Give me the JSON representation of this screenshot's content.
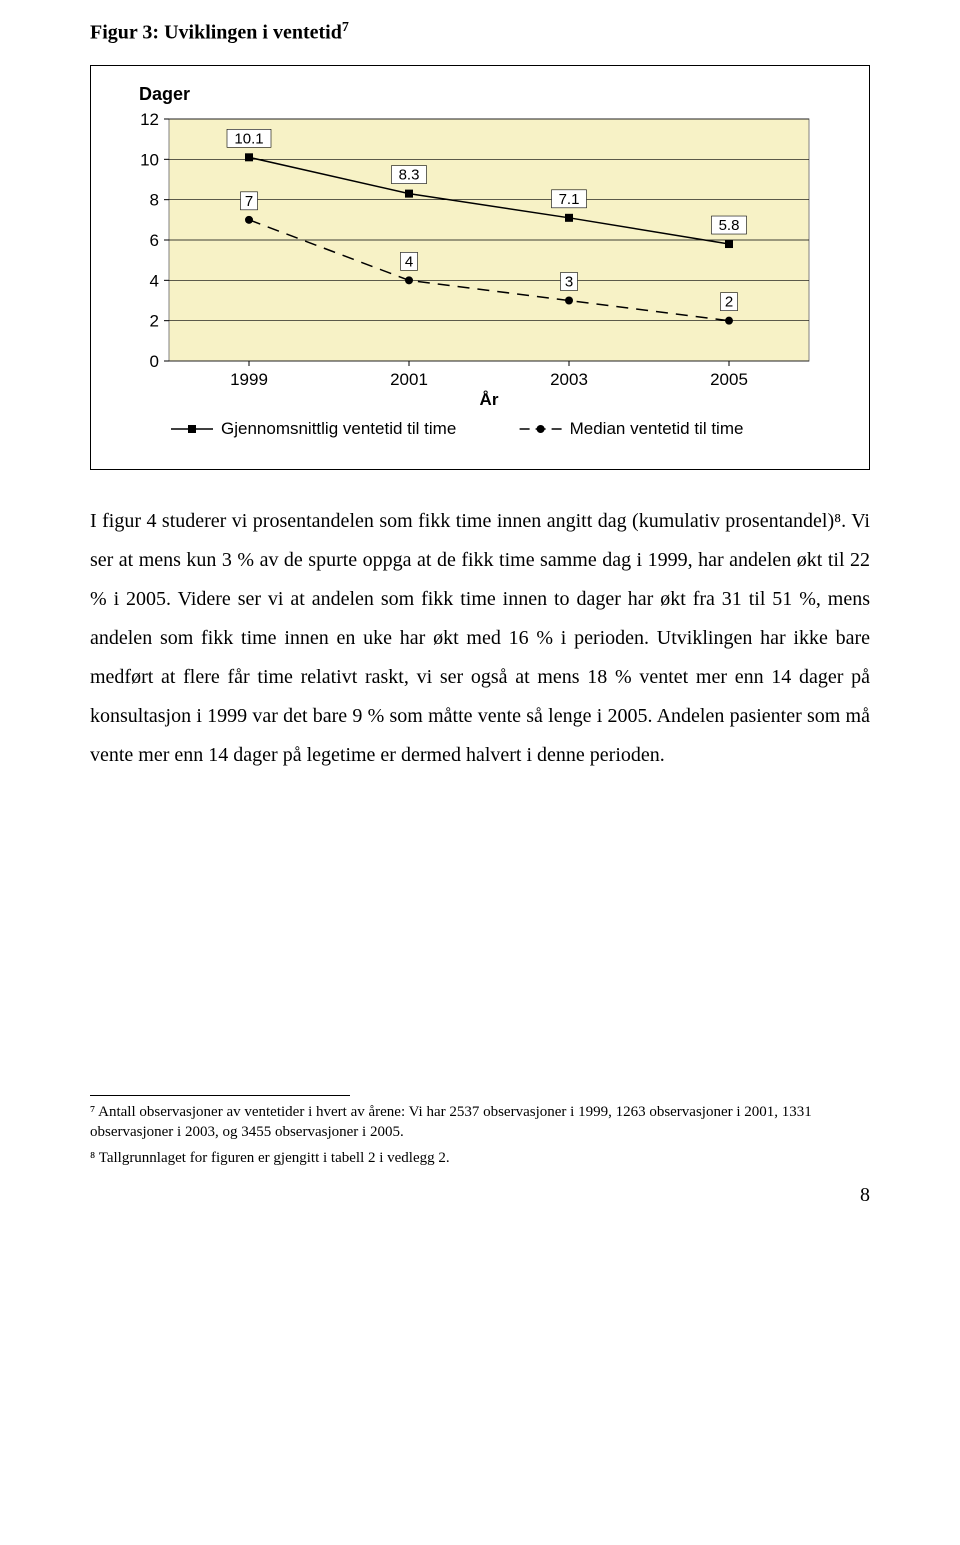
{
  "figure": {
    "number": 3,
    "title_prefix": "Figur 3: Uviklingen i ventetid",
    "footnote_marker": "7",
    "y_axis_title": "Dager",
    "x_axis_title": "År",
    "chart": {
      "type": "line",
      "background_color": "#f7f2c6",
      "plot_border_color": "#808080",
      "grid_color": "#000000",
      "x_categories": [
        "1999",
        "2001",
        "2003",
        "2005"
      ],
      "ylim": [
        0,
        12
      ],
      "ytick_step": 2,
      "yticks": [
        "0",
        "2",
        "4",
        "6",
        "8",
        "10",
        "12"
      ],
      "series": [
        {
          "name": "Gjennomsnittlig ventetid til time",
          "values": [
            10.1,
            8.3,
            7.1,
            5.8
          ],
          "labels": [
            "10.1",
            "8.3",
            "7.1",
            "5.8"
          ],
          "color": "#000000",
          "marker": "square",
          "marker_size": 8,
          "line_style": "solid",
          "line_width": 1.5
        },
        {
          "name": "Median ventetid til time",
          "values": [
            7,
            4,
            3,
            2
          ],
          "labels": [
            "7",
            "4",
            "3",
            "2"
          ],
          "color": "#000000",
          "marker": "circle",
          "marker_size": 8,
          "line_style": "dashed",
          "line_width": 1.5
        }
      ],
      "data_label_bg": "#ffffff",
      "data_label_border": "#000000"
    }
  },
  "body_text": "I figur 4 studerer vi prosentandelen som fikk time innen angitt dag (kumulativ prosentandel)⁸. Vi ser at mens kun 3 % av de spurte oppga at de fikk time samme dag i 1999, har andelen økt til 22 % i 2005. Videre ser vi at andelen som fikk time innen to dager har økt fra 31 til 51 %, mens andelen som fikk time innen en uke har økt med 16 % i perioden. Utviklingen har ikke bare medført at flere får time relativt raskt, vi ser også at mens 18 % ventet mer enn 14 dager på konsultasjon i 1999 var det bare 9 % som måtte vente så lenge i 2005. Andelen pasienter som må vente mer enn 14 dager på legetime er dermed halvert i denne perioden.",
  "footnotes": {
    "note7": "⁷ Antall observasjoner av ventetider i hvert av årene: Vi har 2537 observasjoner i 1999, 1263 observasjoner i 2001,  1331 observasjoner i 2003, og 3455 observasjoner i 2005.",
    "note8": "⁸ Tallgrunnlaget for figuren er gjengitt i tabell 2 i vedlegg 2."
  },
  "page_number": "8"
}
